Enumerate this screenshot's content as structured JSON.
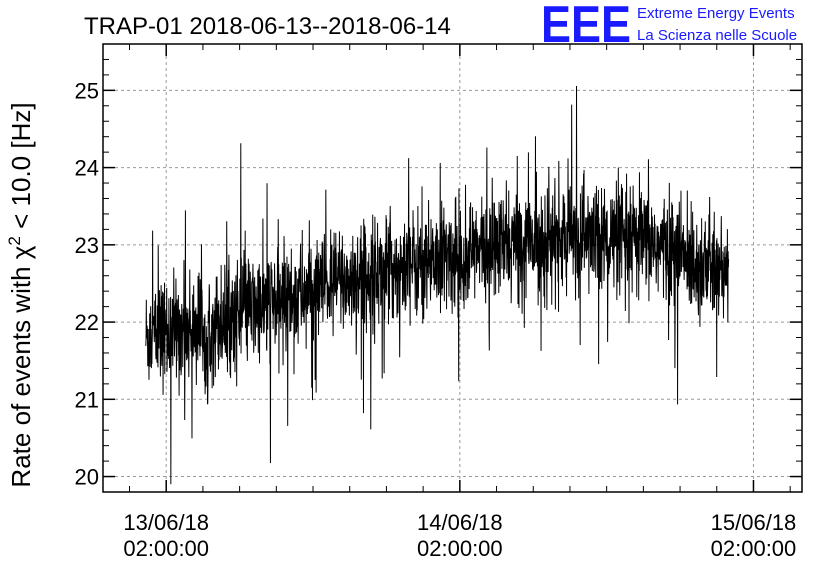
{
  "header": {
    "logo_letters": "EEE",
    "logo_line1": "Extreme Energy Events",
    "logo_line2": "La Scienza nelle Scuole",
    "logo_color": "#1a1aff"
  },
  "chart_data": {
    "type": "line",
    "title": "TRAP-01 2018-06-13--2018-06-14",
    "ylabel_prefix": "Rate of events with ",
    "ylabel_chi": "χ",
    "ylabel_sup": "2",
    "ylabel_suffix": " < 10.0 [Hz]",
    "ylim": [
      19.8,
      25.6
    ],
    "yticks": [
      20,
      21,
      22,
      23,
      24,
      25
    ],
    "ytick_labels": [
      "20",
      "21",
      "22",
      "23",
      "24",
      "25"
    ],
    "xlim": [
      "2018-06-12 20:50",
      "2018-06-15 05:58"
    ],
    "xticks": [
      {
        "x": "2018-06-13 02:00:00",
        "date": "13/06/18",
        "time": "02:00:00"
      },
      {
        "x": "2018-06-14 02:00:00",
        "date": "14/06/18",
        "time": "02:00:00"
      },
      {
        "x": "2018-06-15 02:00:00",
        "date": "15/06/18",
        "time": "02:00:00"
      }
    ],
    "grid": true,
    "series_color": "#000000",
    "series": [
      {
        "x_start": "2018-06-13 00:20",
        "x_end": "2018-06-14 23:58",
        "trend_x": [
          "2018-06-13 00:20",
          "2018-06-13 06:00",
          "2018-06-13 12:00",
          "2018-06-13 18:00",
          "2018-06-14 00:00",
          "2018-06-14 06:00",
          "2018-06-14 12:00",
          "2018-06-14 18:00",
          "2018-06-14 23:58"
        ],
        "trend_y": [
          21.8,
          22.0,
          22.3,
          22.6,
          22.8,
          23.0,
          23.1,
          23.0,
          22.6
        ],
        "noise_amplitude": 0.35
      }
    ]
  }
}
